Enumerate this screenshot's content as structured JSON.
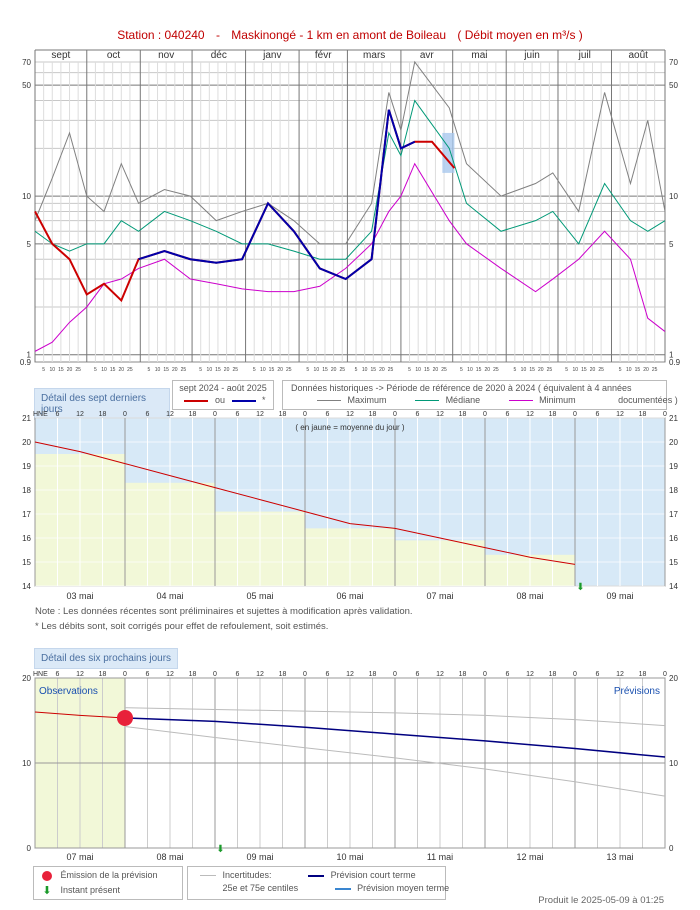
{
  "page": {
    "station_label": "Station : 040240",
    "separator": "-",
    "station_name": "Maskinongé - 1 km en amont de Boileau",
    "unit_label": "( Débit moyen en m³/s )",
    "footer": "Produit le 2025-05-09 à 01:25"
  },
  "colors": {
    "current": "#cc0000",
    "corrected": "#0000aa",
    "maximum": "#808080",
    "median": "#009977",
    "minimum": "#cc00cc",
    "forecast_short": "#000080",
    "forecast_medium": "#3a86d0",
    "observed_fill": "#f2f8d8",
    "panel_bg": "#d7e9f7"
  },
  "legend_top": {
    "detail_btn": "Détail des sept derniers jours",
    "period_label": "sept 2024 - août 2025",
    "or_label": "ou",
    "star_label": "*",
    "hist_label": "Données historiques -> Période de référence  de 2020 à 2024   ( équivalent à 4 années",
    "max_label": "Maximum",
    "median_label": "Médiane",
    "min_label": "Minimum",
    "documented_label": "documentées )"
  },
  "notes": {
    "note1": "Note : Les données récentes sont préliminaires et sujettes à modification après validation.",
    "note2": "* Les débits sont, soit corrigés pour effet de refoulement, soit estimés."
  },
  "legend_bottom": {
    "detail_btn": "Détail des six prochains jours",
    "emission": "Émission de la prévision",
    "instant": "Instant présent",
    "uncert": "Incertitudes:",
    "centiles": "25e et 75e centiles",
    "short_term": "Prévision court terme",
    "medium_term": "Prévision moyen terme"
  },
  "chart_data": [
    {
      "type": "line",
      "scale": "log",
      "months": [
        "sept",
        "oct",
        "nov",
        "déc",
        "janv",
        "févr",
        "mars",
        "avr",
        "mai",
        "juin",
        "juil",
        "août"
      ],
      "day_ticks": [
        "5",
        "10",
        "15",
        "20",
        "25"
      ],
      "y_ticks": [
        "70",
        "50",
        "10",
        "5",
        "1",
        "0.9"
      ],
      "ylim": [
        0.9,
        70
      ],
      "series": [
        {
          "name": "Maximum",
          "x": [
            0,
            10,
            20,
            30,
            40,
            50,
            60,
            75,
            90,
            105,
            120,
            135,
            150,
            165,
            180,
            195,
            205,
            212,
            220,
            240,
            250,
            270,
            290,
            300,
            315,
            330,
            345,
            355,
            365
          ],
          "values": [
            7,
            13,
            25,
            10,
            8,
            16,
            9,
            11,
            10,
            7,
            8,
            9,
            7,
            5,
            5,
            9,
            45,
            26,
            70,
            36,
            16,
            10,
            12,
            14,
            8,
            45,
            12,
            30,
            8
          ]
        },
        {
          "name": "Médiane",
          "x": [
            0,
            10,
            20,
            30,
            40,
            50,
            60,
            75,
            90,
            105,
            120,
            135,
            150,
            165,
            180,
            195,
            205,
            212,
            220,
            240,
            250,
            270,
            290,
            300,
            315,
            330,
            345,
            355,
            365
          ],
          "values": [
            6,
            5,
            4.5,
            5,
            5,
            7,
            6,
            8,
            7,
            6,
            5,
            5,
            4.5,
            4,
            4,
            6,
            25,
            18,
            40,
            20,
            9,
            6,
            7,
            8,
            5,
            12,
            7,
            6,
            7
          ]
        },
        {
          "name": "Minimum",
          "x": [
            0,
            10,
            20,
            30,
            40,
            50,
            60,
            75,
            90,
            105,
            120,
            135,
            150,
            165,
            180,
            195,
            205,
            212,
            220,
            240,
            250,
            270,
            290,
            300,
            315,
            330,
            345,
            355,
            365
          ],
          "values": [
            1.05,
            1.2,
            1.6,
            2,
            2.8,
            3,
            3.5,
            4,
            3,
            2.8,
            2.6,
            2.5,
            2.5,
            2.7,
            3.5,
            5,
            8,
            10,
            16,
            7,
            5,
            3.5,
            2.5,
            3,
            4,
            6,
            4,
            1.7,
            1.4
          ]
        },
        {
          "name": "Débit 2024-2025",
          "x": [
            0,
            10,
            20,
            30,
            40,
            50,
            60,
            75,
            90,
            105,
            120,
            135,
            150,
            165,
            180,
            195,
            205,
            212,
            220,
            230,
            243
          ],
          "values": [
            8,
            5,
            4,
            2.4,
            2.8,
            2.2,
            4,
            4.5,
            4,
            3.8,
            4,
            9,
            6,
            3.5,
            3,
            4,
            35,
            20,
            22,
            22,
            15
          ]
        }
      ]
    },
    {
      "type": "line",
      "x_labels": [
        "03 mai",
        "04 mai",
        "05 mai",
        "06 mai",
        "07 mai",
        "08 mai",
        "09 mai"
      ],
      "hours": [
        "6",
        "12",
        "18",
        "0"
      ],
      "hne": "HNE",
      "y_ticks": [
        21,
        20,
        19,
        18,
        17,
        16,
        15,
        14
      ],
      "ylim": [
        14,
        21
      ],
      "annotation": "( en jaune = moyenne du jour )",
      "daily_means": [
        19.5,
        18.3,
        17.1,
        16.4,
        15.9,
        15.3
      ],
      "series": [
        {
          "name": "Débit",
          "x": [
            0,
            0.5,
            1,
            1.5,
            2,
            2.5,
            3,
            3.5,
            4,
            4.5,
            5,
            5.5,
            6
          ],
          "values": [
            20,
            19.6,
            19.1,
            18.6,
            18.1,
            17.6,
            17.1,
            16.6,
            16.4,
            16.0,
            15.6,
            15.2,
            14.9
          ]
        }
      ]
    },
    {
      "type": "line",
      "x_labels": [
        "07 mai",
        "08 mai",
        "09 mai",
        "10 mai",
        "11 mai",
        "12 mai",
        "13 mai"
      ],
      "hours": [
        "6",
        "12",
        "18",
        "0"
      ],
      "hne": "HNE",
      "y_ticks": [
        20,
        10,
        0
      ],
      "ylim": [
        0,
        20
      ],
      "obs_label": "Observations",
      "forecast_label": "Prévisions",
      "series": [
        {
          "name": "Observé",
          "x": [
            0,
            0.5,
            1
          ],
          "values": [
            16,
            15.6,
            15.3
          ]
        },
        {
          "name": "Prévision",
          "x": [
            1,
            2,
            3,
            4,
            5,
            6,
            7
          ],
          "values": [
            15.3,
            14.9,
            14.2,
            13.4,
            12.6,
            11.7,
            10.7
          ]
        },
        {
          "name": "75e centile",
          "x": [
            1,
            2,
            3,
            4,
            5,
            6,
            7
          ],
          "values": [
            16.5,
            16.3,
            16.1,
            15.9,
            15.6,
            15.1,
            14.4
          ]
        },
        {
          "name": "25e centile",
          "x": [
            1,
            2,
            3,
            4,
            5,
            6,
            7
          ],
          "values": [
            14.3,
            13.0,
            11.8,
            10.6,
            9.3,
            7.8,
            6.1
          ]
        }
      ]
    }
  ]
}
